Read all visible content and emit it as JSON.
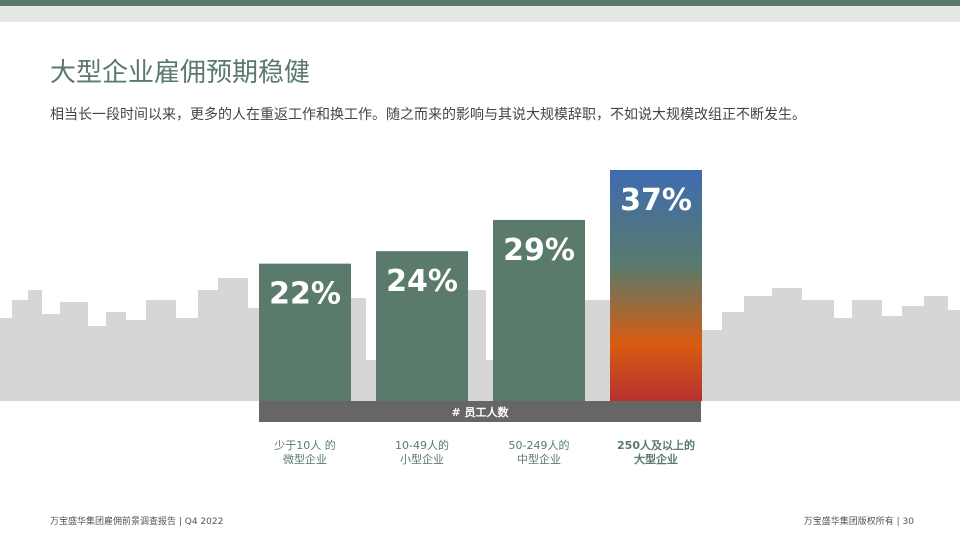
{
  "header": {
    "title": "大型企业雇佣预期稳健",
    "subtitle": "相当长一段时间以来，更多的人在重返工作和换工作。随之而来的影响与其说大规模辞职，不如说大规模改组正不断发生。"
  },
  "chart_data": {
    "type": "bar",
    "categories": [
      [
        "少于10人 的",
        "微型企业"
      ],
      [
        "10-49人的",
        "小型企业"
      ],
      [
        "50-249人的",
        "中型企业"
      ],
      [
        "250人及以上的",
        "大型企业"
      ]
    ],
    "values": [
      22,
      24,
      29,
      37
    ],
    "value_labels": [
      "22%",
      "24%",
      "29%",
      "37%"
    ],
    "xlabel": "# 员工人数",
    "ylim": [
      0,
      40
    ],
    "grid": false,
    "highlight_index": 3,
    "colors": {
      "bar": "#5a7a6b",
      "highlight_gradient": [
        "#3e6cb0",
        "#5a7a6b",
        "#d85c12",
        "#b8302e"
      ],
      "axis_band": "#666666",
      "skyline": "#d6d6d6",
      "category_text": "#5a7a6b"
    }
  },
  "footer": {
    "left": "万宝盛华集团雇佣前景调查报告 |  Q4 2022",
    "right": "万宝盛华集团版权所有 |  30"
  }
}
